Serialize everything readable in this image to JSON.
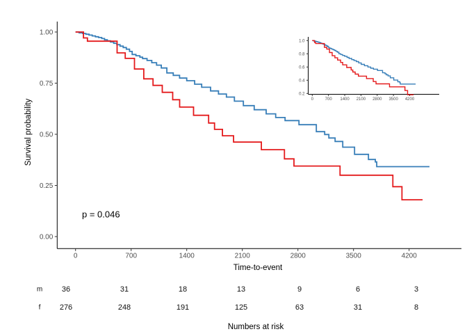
{
  "main_plot": {
    "ylabel": "Survival probability",
    "xlabel": "Time-to-event",
    "p_value_label": "p = 0.046",
    "y_ticks": [
      {
        "value": 1.0,
        "label": "1.00"
      },
      {
        "value": 0.75,
        "label": "0.75"
      },
      {
        "value": 0.5,
        "label": "0.50"
      },
      {
        "value": 0.25,
        "label": "0.25"
      },
      {
        "value": 0.0,
        "label": "0.00"
      }
    ],
    "x_ticks": [
      {
        "value": 0,
        "label": "0"
      },
      {
        "value": 700,
        "label": "700"
      },
      {
        "value": 1400,
        "label": "1400"
      },
      {
        "value": 2100,
        "label": "2100"
      },
      {
        "value": 2800,
        "label": "2800"
      },
      {
        "value": 3500,
        "label": "3500"
      },
      {
        "value": 4200,
        "label": "4200"
      }
    ]
  },
  "inset_plot": {
    "y_ticks": [
      {
        "value": 1.0,
        "label": "1.0"
      },
      {
        "value": 0.8,
        "label": "0.8"
      },
      {
        "value": 0.6,
        "label": "0.6"
      },
      {
        "value": 0.4,
        "label": "0.4"
      },
      {
        "value": 0.2,
        "label": "0.2"
      }
    ],
    "x_ticks": [
      {
        "value": 0,
        "label": "0"
      },
      {
        "value": 700,
        "label": "700"
      },
      {
        "value": 1400,
        "label": "1400"
      },
      {
        "value": 2100,
        "label": "2100"
      },
      {
        "value": 2800,
        "label": "2800"
      },
      {
        "value": 3500,
        "label": "3500"
      },
      {
        "value": 4200,
        "label": "4200"
      }
    ]
  },
  "chart_data": {
    "type": "line",
    "subtype": "kaplan-meier-step",
    "title": "",
    "xlabel": "Time-to-event",
    "ylabel": "Survival probability",
    "xlim": [
      -230,
      4850
    ],
    "ylim": [
      -0.06,
      1.05
    ],
    "grid": "off",
    "legend": "none",
    "annotation": "p = 0.046",
    "series": [
      {
        "name": "f",
        "color": "#377EB8",
        "n_start": 276,
        "steps": [
          [
            0,
            1.0
          ],
          [
            45,
            0.996
          ],
          [
            90,
            0.993
          ],
          [
            130,
            0.989
          ],
          [
            170,
            0.985
          ],
          [
            210,
            0.981
          ],
          [
            250,
            0.977
          ],
          [
            290,
            0.973
          ],
          [
            330,
            0.968
          ],
          [
            365,
            0.962
          ],
          [
            400,
            0.957
          ],
          [
            440,
            0.951
          ],
          [
            480,
            0.945
          ],
          [
            520,
            0.938
          ],
          [
            560,
            0.931
          ],
          [
            600,
            0.924
          ],
          [
            640,
            0.916
          ],
          [
            680,
            0.905
          ],
          [
            713,
            0.89
          ],
          [
            760,
            0.884
          ],
          [
            810,
            0.877
          ],
          [
            844,
            0.87
          ],
          [
            900,
            0.861
          ],
          [
            960,
            0.85
          ],
          [
            1020,
            0.838
          ],
          [
            1080,
            0.824
          ],
          [
            1150,
            0.8
          ],
          [
            1230,
            0.788
          ],
          [
            1310,
            0.775
          ],
          [
            1400,
            0.762
          ],
          [
            1500,
            0.745
          ],
          [
            1588,
            0.73
          ],
          [
            1700,
            0.712
          ],
          [
            1800,
            0.697
          ],
          [
            1900,
            0.682
          ],
          [
            2000,
            0.662
          ],
          [
            2113,
            0.64
          ],
          [
            2250,
            0.62
          ],
          [
            2400,
            0.6
          ],
          [
            2520,
            0.582
          ],
          [
            2638,
            0.567
          ],
          [
            2813,
            0.547
          ],
          [
            3032,
            0.513
          ],
          [
            3137,
            0.499
          ],
          [
            3189,
            0.482
          ],
          [
            3268,
            0.465
          ],
          [
            3364,
            0.437
          ],
          [
            3513,
            0.402
          ],
          [
            3688,
            0.377
          ],
          [
            3775,
            0.365
          ],
          [
            3792,
            0.342
          ]
        ],
        "end_time": 4456
      },
      {
        "name": "m",
        "color": "#E41A1C",
        "n_start": 36,
        "steps": [
          [
            0,
            1.0
          ],
          [
            100,
            0.971
          ],
          [
            150,
            0.955
          ],
          [
            523,
            0.898
          ],
          [
            626,
            0.871
          ],
          [
            742,
            0.819
          ],
          [
            859,
            0.771
          ],
          [
            976,
            0.739
          ],
          [
            1092,
            0.705
          ],
          [
            1223,
            0.669
          ],
          [
            1311,
            0.633
          ],
          [
            1486,
            0.593
          ],
          [
            1676,
            0.555
          ],
          [
            1750,
            0.524
          ],
          [
            1850,
            0.493
          ],
          [
            1990,
            0.462
          ],
          [
            2340,
            0.425
          ],
          [
            2630,
            0.38
          ],
          [
            2750,
            0.345
          ],
          [
            3330,
            0.3
          ],
          [
            3995,
            0.244
          ],
          [
            4110,
            0.18
          ]
        ],
        "end_time": 4370
      }
    ]
  },
  "risk_table": {
    "caption": "Numbers at risk",
    "time_points": [
      0,
      700,
      1400,
      2100,
      2800,
      3500,
      4200
    ],
    "rows": [
      {
        "label": "m",
        "values": [
          36,
          31,
          18,
          13,
          9,
          6,
          3
        ]
      },
      {
        "label": "f",
        "values": [
          276,
          248,
          191,
          125,
          63,
          31,
          8
        ]
      }
    ]
  },
  "colors": {
    "curve_male": "#E41A1C",
    "curve_female": "#377EB8",
    "axis_line": "#000000",
    "tick_label": "#4D4D4D",
    "text": "#000000"
  }
}
